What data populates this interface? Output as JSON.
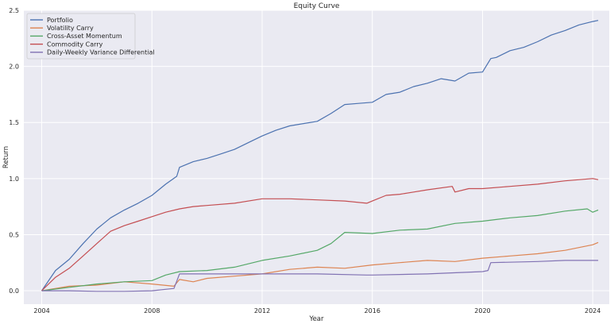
{
  "chart_data": {
    "type": "line",
    "title": "Equity Curve",
    "xlabel": "Year",
    "ylabel": "Return",
    "xlim": [
      2003.35,
      2024.6
    ],
    "ylim": [
      -0.12,
      2.5
    ],
    "x_ticks": [
      2004,
      2008,
      2012,
      2016,
      2020,
      2024
    ],
    "x_tick_labels": [
      "2004",
      "2008",
      "2012",
      "2016",
      "2020",
      "2024"
    ],
    "y_ticks": [
      0.0,
      0.5,
      1.0,
      1.5,
      2.0,
      2.5
    ],
    "y_tick_labels": [
      "0.0",
      "0.5",
      "1.0",
      "1.5",
      "2.0",
      "2.5"
    ],
    "grid": true,
    "legend_position": "top-left",
    "background_color": "#eaeaf2",
    "series": [
      {
        "name": "Portfolio",
        "color": "#4c72b0",
        "x": [
          2004.0,
          2004.5,
          2005.0,
          2005.5,
          2006.0,
          2006.5,
          2007.0,
          2007.5,
          2008.0,
          2008.5,
          2008.9,
          2009.0,
          2009.5,
          2010.0,
          2010.5,
          2011.0,
          2011.5,
          2012.0,
          2012.5,
          2013.0,
          2013.5,
          2014.0,
          2014.5,
          2015.0,
          2015.5,
          2016.0,
          2016.5,
          2017.0,
          2017.5,
          2018.0,
          2018.5,
          2019.0,
          2019.5,
          2020.0,
          2020.3,
          2020.5,
          2021.0,
          2021.5,
          2022.0,
          2022.5,
          2023.0,
          2023.5,
          2024.0,
          2024.2
        ],
        "y": [
          0.0,
          0.18,
          0.28,
          0.42,
          0.55,
          0.65,
          0.72,
          0.78,
          0.85,
          0.95,
          1.02,
          1.1,
          1.15,
          1.18,
          1.22,
          1.26,
          1.32,
          1.38,
          1.43,
          1.47,
          1.49,
          1.51,
          1.58,
          1.66,
          1.67,
          1.68,
          1.75,
          1.77,
          1.82,
          1.85,
          1.89,
          1.87,
          1.94,
          1.95,
          2.07,
          2.08,
          2.14,
          2.17,
          2.22,
          2.28,
          2.32,
          2.37,
          2.4,
          2.41
        ]
      },
      {
        "name": "Volatility Carry",
        "color": "#dd8452",
        "x": [
          2004.0,
          2005.0,
          2006.0,
          2007.0,
          2008.0,
          2008.8,
          2009.0,
          2009.5,
          2010.0,
          2011.0,
          2012.0,
          2013.0,
          2014.0,
          2015.0,
          2016.0,
          2017.0,
          2018.0,
          2019.0,
          2020.0,
          2021.0,
          2022.0,
          2023.0,
          2024.0,
          2024.2
        ],
        "y": [
          0.0,
          0.04,
          0.05,
          0.08,
          0.06,
          0.04,
          0.1,
          0.08,
          0.11,
          0.13,
          0.15,
          0.19,
          0.21,
          0.2,
          0.23,
          0.25,
          0.27,
          0.26,
          0.29,
          0.31,
          0.33,
          0.36,
          0.41,
          0.43
        ]
      },
      {
        "name": "Cross-Asset Momentum",
        "color": "#55a868",
        "x": [
          2004.0,
          2005.0,
          2006.0,
          2007.0,
          2008.0,
          2008.5,
          2009.0,
          2010.0,
          2011.0,
          2012.0,
          2013.0,
          2014.0,
          2014.5,
          2015.0,
          2016.0,
          2017.0,
          2018.0,
          2019.0,
          2020.0,
          2021.0,
          2022.0,
          2023.0,
          2023.8,
          2024.0,
          2024.2
        ],
        "y": [
          0.0,
          0.03,
          0.06,
          0.08,
          0.09,
          0.14,
          0.17,
          0.18,
          0.21,
          0.27,
          0.31,
          0.36,
          0.42,
          0.52,
          0.51,
          0.54,
          0.55,
          0.6,
          0.62,
          0.65,
          0.67,
          0.71,
          0.73,
          0.7,
          0.72
        ]
      },
      {
        "name": "Commodity Carry",
        "color": "#c44e52",
        "x": [
          2004.0,
          2004.5,
          2005.0,
          2005.5,
          2006.0,
          2006.5,
          2007.0,
          2007.5,
          2008.0,
          2008.5,
          2009.0,
          2009.5,
          2010.0,
          2011.0,
          2012.0,
          2013.0,
          2014.0,
          2015.0,
          2015.8,
          2016.0,
          2016.5,
          2017.0,
          2017.5,
          2018.0,
          2018.9,
          2019.0,
          2019.5,
          2020.0,
          2021.0,
          2022.0,
          2023.0,
          2024.0,
          2024.2
        ],
        "y": [
          0.0,
          0.12,
          0.2,
          0.31,
          0.42,
          0.53,
          0.58,
          0.62,
          0.66,
          0.7,
          0.73,
          0.75,
          0.76,
          0.78,
          0.82,
          0.82,
          0.81,
          0.8,
          0.78,
          0.8,
          0.85,
          0.86,
          0.88,
          0.9,
          0.93,
          0.88,
          0.91,
          0.91,
          0.93,
          0.95,
          0.98,
          1.0,
          0.99
        ]
      },
      {
        "name": "Daily-Weekly Variance Differential",
        "color": "#8172b3",
        "x": [
          2004.0,
          2005.0,
          2006.0,
          2007.0,
          2008.0,
          2008.8,
          2009.0,
          2010.0,
          2012.0,
          2014.0,
          2015.8,
          2016.0,
          2018.0,
          2020.0,
          2020.2,
          2020.3,
          2022.0,
          2023.0,
          2024.2
        ],
        "y": [
          0.0,
          0.0,
          -0.005,
          -0.005,
          0.0,
          0.02,
          0.15,
          0.15,
          0.15,
          0.15,
          0.14,
          0.14,
          0.15,
          0.17,
          0.18,
          0.25,
          0.26,
          0.27,
          0.27
        ]
      }
    ]
  }
}
